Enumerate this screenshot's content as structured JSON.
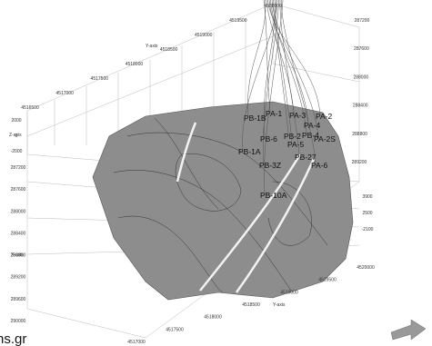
{
  "scene": {
    "y_ticks_top": [
      "4520000",
      "4519500",
      "4519000",
      "4518500",
      "4518000",
      "4517500",
      "4517000",
      "4516500"
    ],
    "x_ticks_right": [
      "287200",
      "287600",
      "288000",
      "288400",
      "288800",
      "289200"
    ],
    "z_ticks_left": [
      "2000",
      "0",
      "-2000"
    ],
    "x_ticks_left": [
      "287200",
      "287600",
      "288000",
      "288400",
      "288800",
      "289200",
      "289600",
      "290000"
    ],
    "z_ticks_right": [
      "3900",
      "2500",
      "-2100"
    ],
    "y_ticks_bottom": [
      "4520000",
      "4519500",
      "4519000",
      "4518500",
      "4518000",
      "4517500",
      "4517000"
    ],
    "axis_names": {
      "y_top": "Y-axis",
      "z_left": "Z-axis",
      "x_left": "X-axis",
      "y_bottom": "Y-axis"
    },
    "wells": [
      "PA-1",
      "PB-1B",
      "PA-3",
      "PA-2",
      "PA-4",
      "PB-4",
      "PA-2S",
      "PB-2",
      "PA-5",
      "PB-6",
      "PB-1A",
      "PB-3Z",
      "PB-27",
      "PA-6",
      "PB-10A"
    ],
    "watermark": "ns.gr"
  }
}
